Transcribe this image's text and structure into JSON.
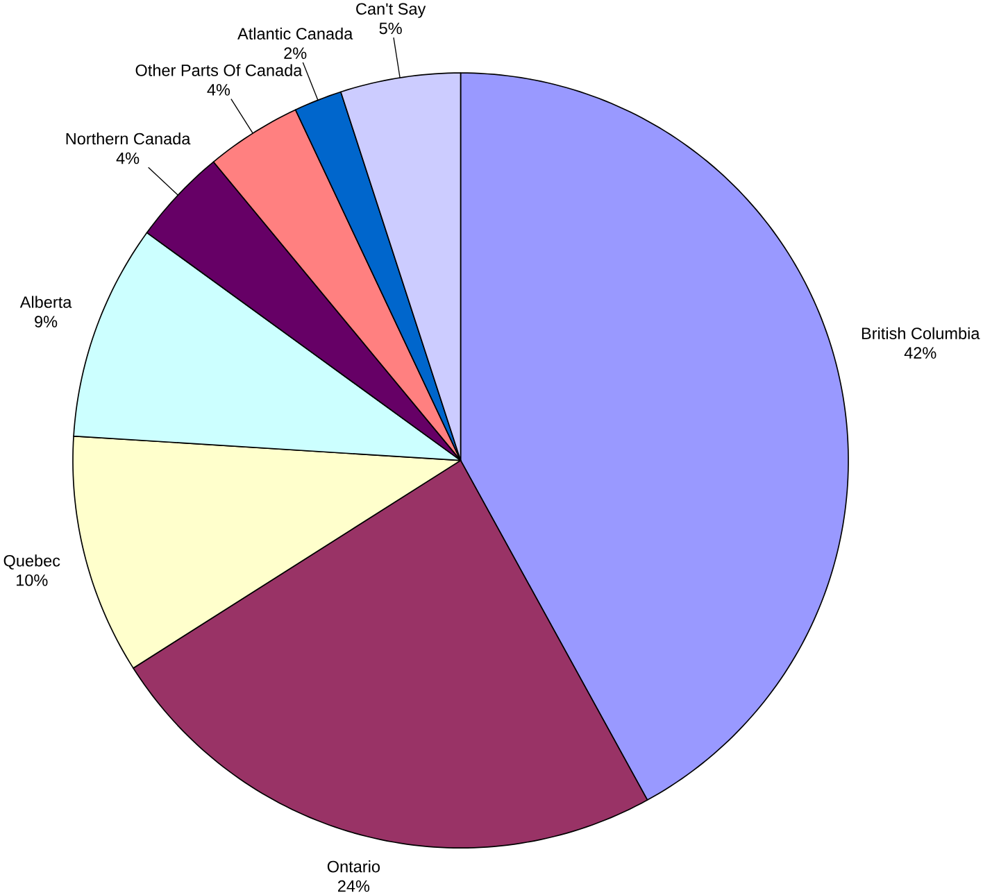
{
  "chart_data": {
    "type": "pie",
    "categories": [
      "British Columbia",
      "Ontario",
      "Quebec",
      "Alberta",
      "Northern Canada",
      "Other Parts Of Canada",
      "Atlantic Canada",
      "Can't Say"
    ],
    "values": [
      42,
      24,
      10,
      9,
      4,
      4,
      2,
      5
    ],
    "value_labels": [
      "42%",
      "24%",
      "10%",
      "9%",
      "4%",
      "4%",
      "2%",
      "5%"
    ],
    "colors": [
      "#9999ff",
      "#993366",
      "#ffffcc",
      "#ccffff",
      "#660066",
      "#ff8080",
      "#0066cc",
      "#ccccff"
    ]
  }
}
